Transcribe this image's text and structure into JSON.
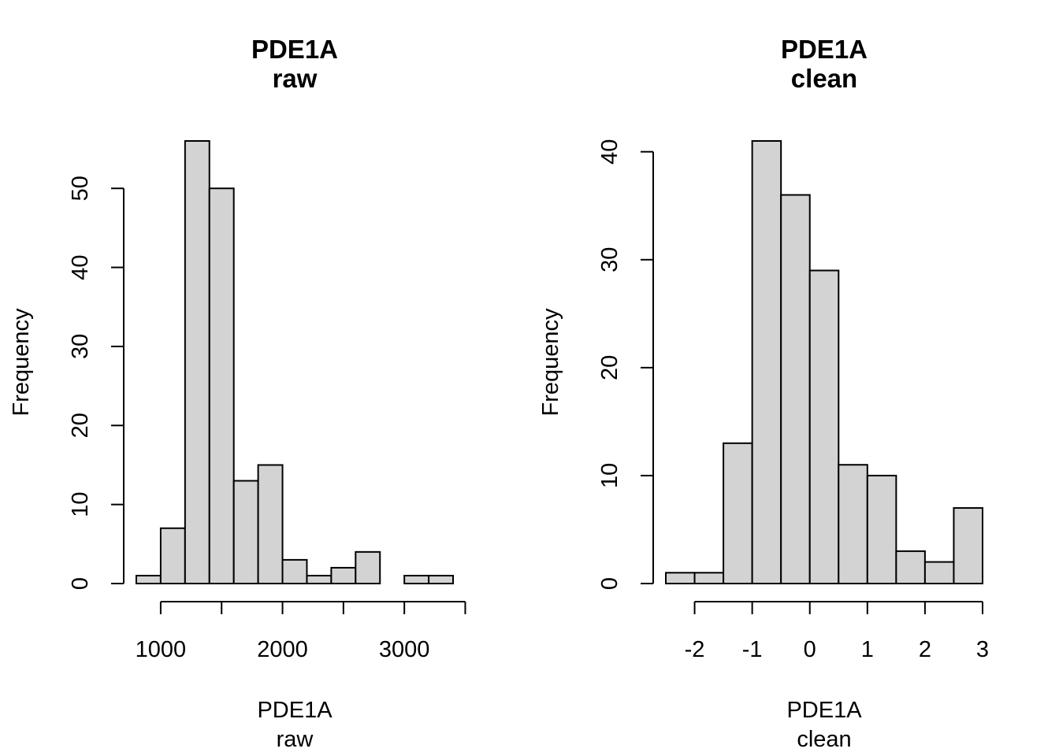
{
  "chart_data": [
    {
      "type": "bar",
      "title": "PDE1A",
      "subtitle": "raw",
      "xlabel": "PDE1A",
      "xlabel_sub": "raw",
      "ylabel": "Frequency",
      "bin_edges": [
        800,
        1000,
        1200,
        1400,
        1600,
        1800,
        2000,
        2200,
        2400,
        2600,
        2800,
        3000,
        3200,
        3400
      ],
      "values": [
        1,
        7,
        56,
        50,
        13,
        15,
        3,
        1,
        2,
        4,
        0,
        1,
        1
      ],
      "xlim": [
        800,
        3400
      ],
      "ylim": [
        0,
        56
      ],
      "x_ticks": [
        1000,
        1500,
        2000,
        2500,
        3000,
        3500
      ],
      "x_tick_labels": [
        "1000",
        "",
        "2000",
        "",
        "3000",
        ""
      ],
      "y_ticks": [
        0,
        10,
        20,
        30,
        40,
        50
      ],
      "y_tick_labels": [
        "0",
        "10",
        "20",
        "30",
        "40",
        "50"
      ],
      "bar_fill": "#d3d3d3",
      "grid": false
    },
    {
      "type": "bar",
      "title": "PDE1A",
      "subtitle": "clean",
      "xlabel": "PDE1A",
      "xlabel_sub": "clean",
      "ylabel": "Frequency",
      "bin_edges": [
        -2.5,
        -2,
        -1.5,
        -1,
        -0.5,
        0,
        0.5,
        1,
        1.5,
        2,
        2.5,
        3
      ],
      "values": [
        1,
        1,
        13,
        41,
        36,
        29,
        11,
        10,
        3,
        2,
        7
      ],
      "xlim": [
        -2.5,
        3
      ],
      "ylim": [
        0,
        41
      ],
      "x_ticks": [
        -2,
        -1,
        0,
        1,
        2,
        3
      ],
      "x_tick_labels": [
        "-2",
        "-1",
        "0",
        "1",
        "2",
        "3"
      ],
      "y_ticks": [
        0,
        10,
        20,
        30,
        40
      ],
      "y_tick_labels": [
        "0",
        "10",
        "20",
        "30",
        "40"
      ],
      "bar_fill": "#d3d3d3",
      "grid": false
    }
  ]
}
